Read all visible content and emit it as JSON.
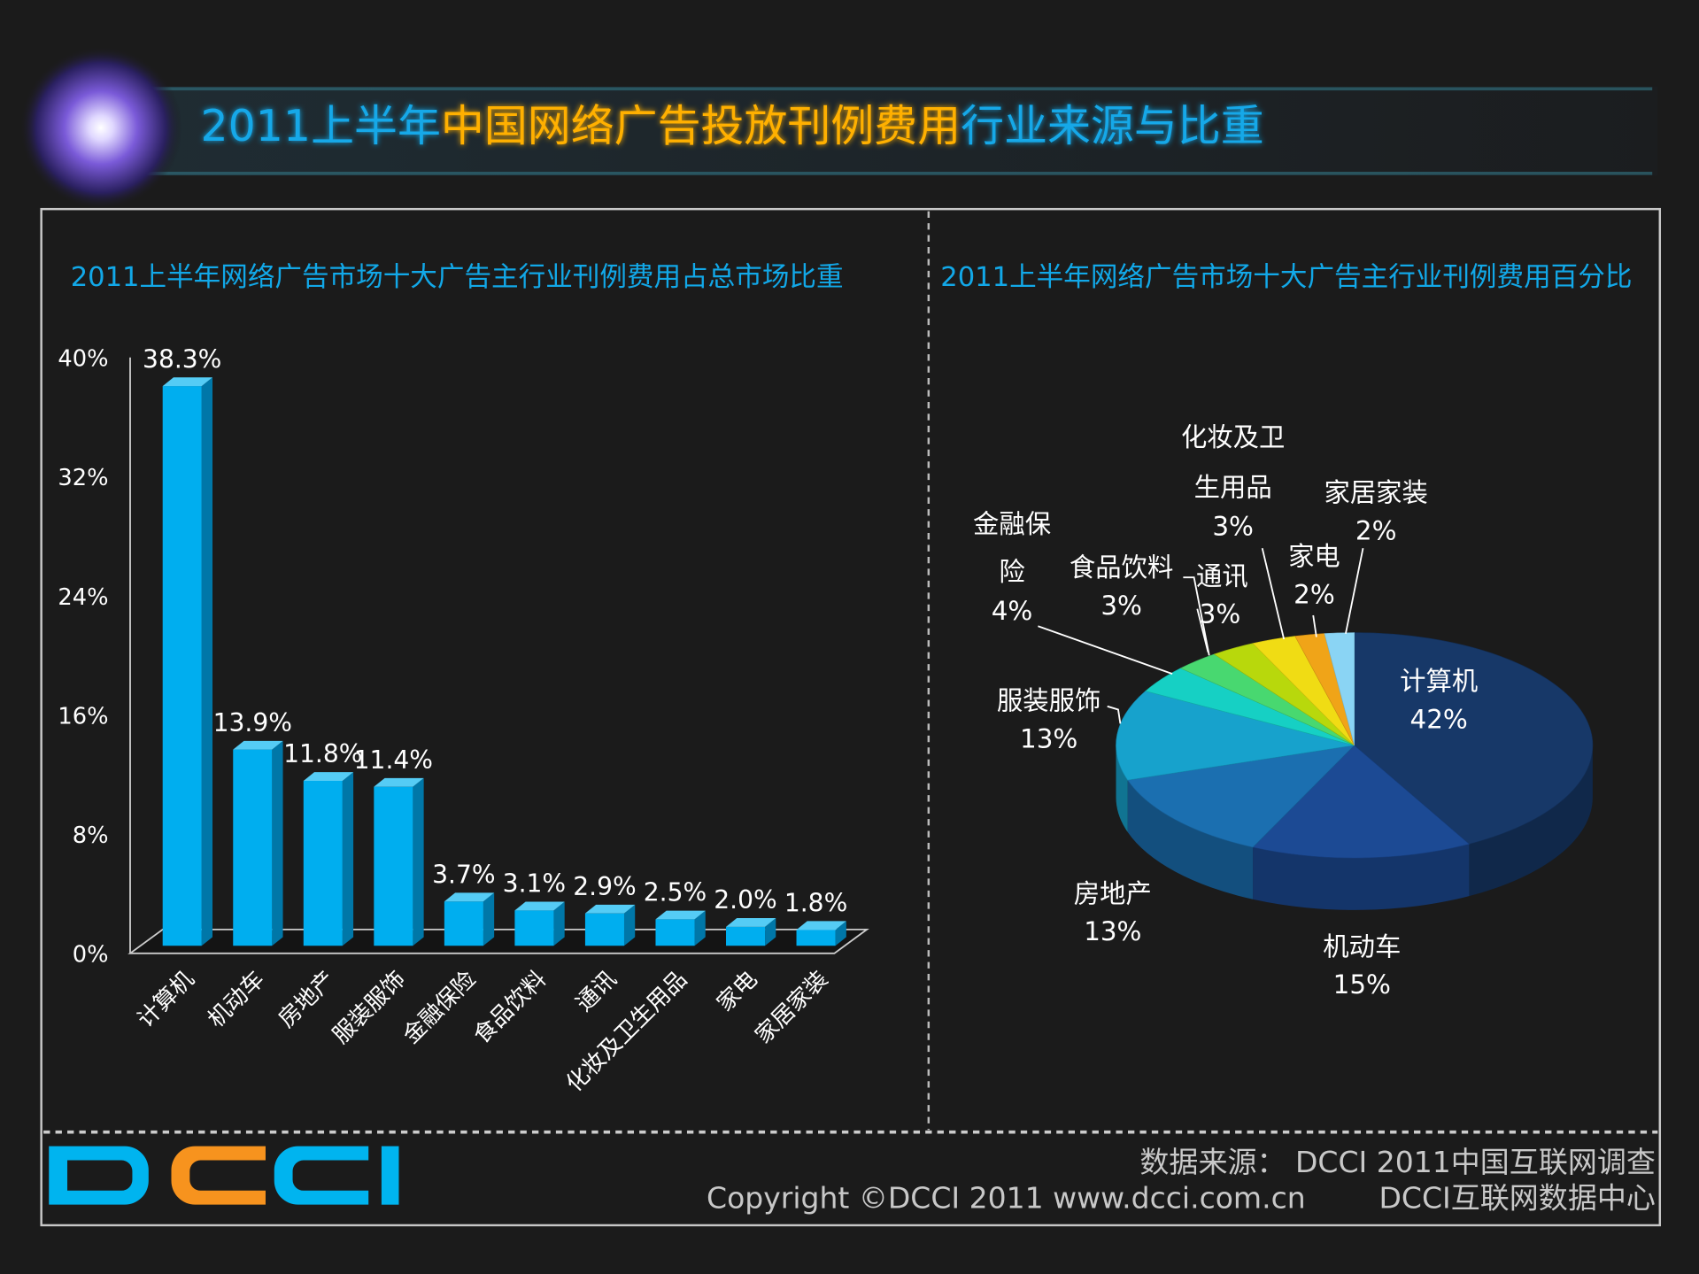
{
  "title": {
    "part1": "2011上半年",
    "part2": "中国网络广告投放刊例费用",
    "part3": "行业来源与比重"
  },
  "left_panel": {
    "title": "2011上半年网络广告市场十大广告主行业刊例费用占总市场比重"
  },
  "right_panel": {
    "title": "2011上半年网络广告市场十大广告主行业刊例费用百分比"
  },
  "footer": {
    "logo": "DCCI",
    "source": "数据来源： DCCI 2011中国互联网调查",
    "copyright": "Copyright ©DCCI 2011 www.dcci.com.cn",
    "org": "DCCI互联网数据中心"
  },
  "colors": {
    "bar": "#00aeef",
    "title_blue": "#12a8e8",
    "title_orange": "#ffb000"
  },
  "chart_data": [
    {
      "type": "bar",
      "title": "2011上半年网络广告市场十大广告主行业刊例费用占总市场比重",
      "categories": [
        "计算机",
        "机动车",
        "房地产",
        "服装服饰",
        "金融保险",
        "食品饮料",
        "通讯",
        "化妆及卫生用品",
        "家电",
        "家居家装"
      ],
      "values": [
        38.3,
        13.9,
        11.8,
        11.4,
        3.7,
        3.1,
        2.9,
        2.5,
        2.0,
        1.8
      ],
      "value_labels": [
        "38.3%",
        "13.9%",
        "11.8%",
        "11.4%",
        "3.7%",
        "3.1%",
        "2.9%",
        "2.5%",
        "2.0%",
        "1.8%"
      ],
      "ylim": [
        0,
        40
      ],
      "yticks": [
        0,
        8,
        16,
        24,
        32,
        40
      ],
      "ytick_labels": [
        "0%",
        "8%",
        "16%",
        "24%",
        "32%",
        "40%"
      ],
      "xlabel": "",
      "ylabel": ""
    },
    {
      "type": "pie",
      "title": "2011上半年网络广告市场十大广告主行业刊例费用百分比",
      "slices": [
        {
          "label": "计算机",
          "value": 42,
          "text": "42%",
          "color": "#173868"
        },
        {
          "label": "机动车",
          "value": 15,
          "text": "15%",
          "color": "#1c4a94"
        },
        {
          "label": "房地产",
          "value": 13,
          "text": "13%",
          "color": "#1b6fb0"
        },
        {
          "label": "服装服饰",
          "value": 13,
          "text": "13%",
          "color": "#17a2cc"
        },
        {
          "label": "金融保险",
          "value": 4,
          "text": "4%",
          "color": "#16d0c4"
        },
        {
          "label": "食品饮料",
          "value": 3,
          "text": "3%",
          "color": "#48d870"
        },
        {
          "label": "通讯",
          "value": 3,
          "text": "3%",
          "color": "#b8d80c"
        },
        {
          "label": "化妆及卫生用品",
          "value": 3,
          "text": "3%",
          "color": "#f0dc14"
        },
        {
          "label": "家电",
          "value": 2,
          "text": "2%",
          "color": "#f0a418"
        },
        {
          "label": "家居家装",
          "value": 2,
          "text": "2%",
          "color": "#8ad4f4"
        }
      ],
      "label_lines": {
        "fin1": "金融保",
        "fin2": "险",
        "cos1": "化妆及卫",
        "cos2": "生用品"
      }
    }
  ]
}
